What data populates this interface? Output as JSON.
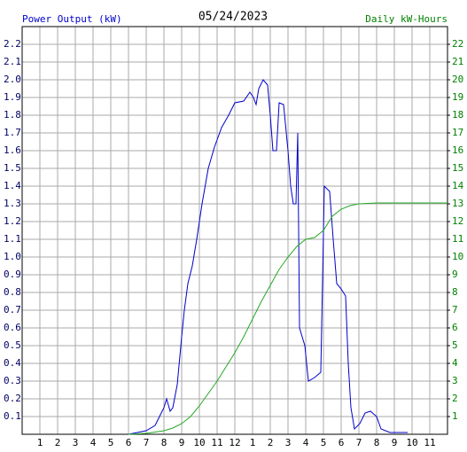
{
  "chart_data": {
    "type": "line",
    "title": "05/24/2023",
    "y_label": "Power Output (kW)",
    "y2_label": "Daily kW-Hours",
    "grid": true,
    "xlim": [
      0,
      24
    ],
    "xticks": [
      1,
      2,
      3,
      4,
      5,
      6,
      7,
      8,
      9,
      10,
      11,
      12,
      {
        "value": 13,
        "label": "1"
      },
      {
        "value": 14,
        "label": "2"
      },
      {
        "value": 15,
        "label": "3"
      },
      {
        "value": 16,
        "label": "4"
      },
      {
        "value": 17,
        "label": "5"
      },
      {
        "value": 18,
        "label": "6"
      },
      {
        "value": 19,
        "label": "7"
      },
      {
        "value": 20,
        "label": "8"
      },
      {
        "value": 21,
        "label": "9"
      },
      {
        "value": 22,
        "label": "10"
      },
      {
        "value": 23,
        "label": "11"
      }
    ],
    "ylim": [
      0,
      2.3
    ],
    "yticks": [
      0.1,
      0.2,
      0.3,
      0.4,
      0.5,
      0.6,
      0.7,
      0.8,
      0.9,
      {
        "value": 1,
        "label": "1.0"
      },
      1.1,
      1.2,
      1.3,
      1.4,
      1.5,
      1.6,
      1.7,
      1.8,
      1.9,
      {
        "value": 2,
        "label": "2.0"
      },
      2.1,
      2.2
    ],
    "y2lim": [
      0,
      23
    ],
    "y2ticks": [
      1,
      2,
      3,
      4,
      5,
      6,
      7,
      8,
      9,
      10,
      11,
      12,
      13,
      14,
      15,
      16,
      17,
      18,
      19,
      20,
      21,
      22
    ],
    "series": [
      {
        "name": "Power Output (kW)",
        "color": "#0000cc",
        "x": [
          6.0,
          7.0,
          7.5,
          7.75,
          8.0,
          8.15,
          8.35,
          8.5,
          8.75,
          9.0,
          9.15,
          9.35,
          9.6,
          9.85,
          10.15,
          10.5,
          10.85,
          11.25,
          11.65,
          12.0,
          12.5,
          12.85,
          13.05,
          13.2,
          13.35,
          13.6,
          13.85,
          14.0,
          14.15,
          14.35,
          14.5,
          14.75,
          15.0,
          15.15,
          15.3,
          15.45,
          15.55,
          15.65,
          15.95,
          16.15,
          16.5,
          16.85,
          17.05,
          17.35,
          17.55,
          17.75,
          18.0,
          18.25,
          18.4,
          18.55,
          18.75,
          19.05,
          19.35,
          19.65,
          20.0,
          20.25,
          20.75,
          21.75
        ],
        "values": [
          0,
          0.02,
          0.05,
          0.1,
          0.15,
          0.2,
          0.13,
          0.15,
          0.28,
          0.55,
          0.7,
          0.85,
          0.95,
          1.1,
          1.3,
          1.5,
          1.62,
          1.73,
          1.8,
          1.87,
          1.88,
          1.93,
          1.9,
          1.86,
          1.95,
          2.0,
          1.97,
          1.8,
          1.6,
          1.6,
          1.87,
          1.86,
          1.6,
          1.4,
          1.3,
          1.3,
          1.7,
          0.6,
          0.5,
          0.3,
          0.32,
          0.35,
          1.4,
          1.37,
          1.1,
          0.85,
          0.82,
          0.78,
          0.4,
          0.15,
          0.03,
          0.06,
          0.12,
          0.13,
          0.1,
          0.03,
          0.01,
          0.01
        ]
      },
      {
        "name": "Daily kW-Hours",
        "color": "#22aa22",
        "axis": "y2",
        "x": [
          6.0,
          7.0,
          8.0,
          8.5,
          9.0,
          9.5,
          10.0,
          10.5,
          11.0,
          11.5,
          12.0,
          12.5,
          13.0,
          13.5,
          14.0,
          14.5,
          15.0,
          15.5,
          16.0,
          16.5,
          17.0,
          17.5,
          18.0,
          18.5,
          19.0,
          20.0,
          24.0
        ],
        "values": [
          0,
          0.05,
          0.2,
          0.35,
          0.6,
          1.0,
          1.6,
          2.3,
          3.0,
          3.8,
          4.6,
          5.5,
          6.5,
          7.5,
          8.4,
          9.3,
          10.0,
          10.6,
          11.0,
          11.1,
          11.5,
          12.3,
          12.7,
          12.9,
          13.0,
          13.05,
          13.05
        ]
      }
    ]
  }
}
